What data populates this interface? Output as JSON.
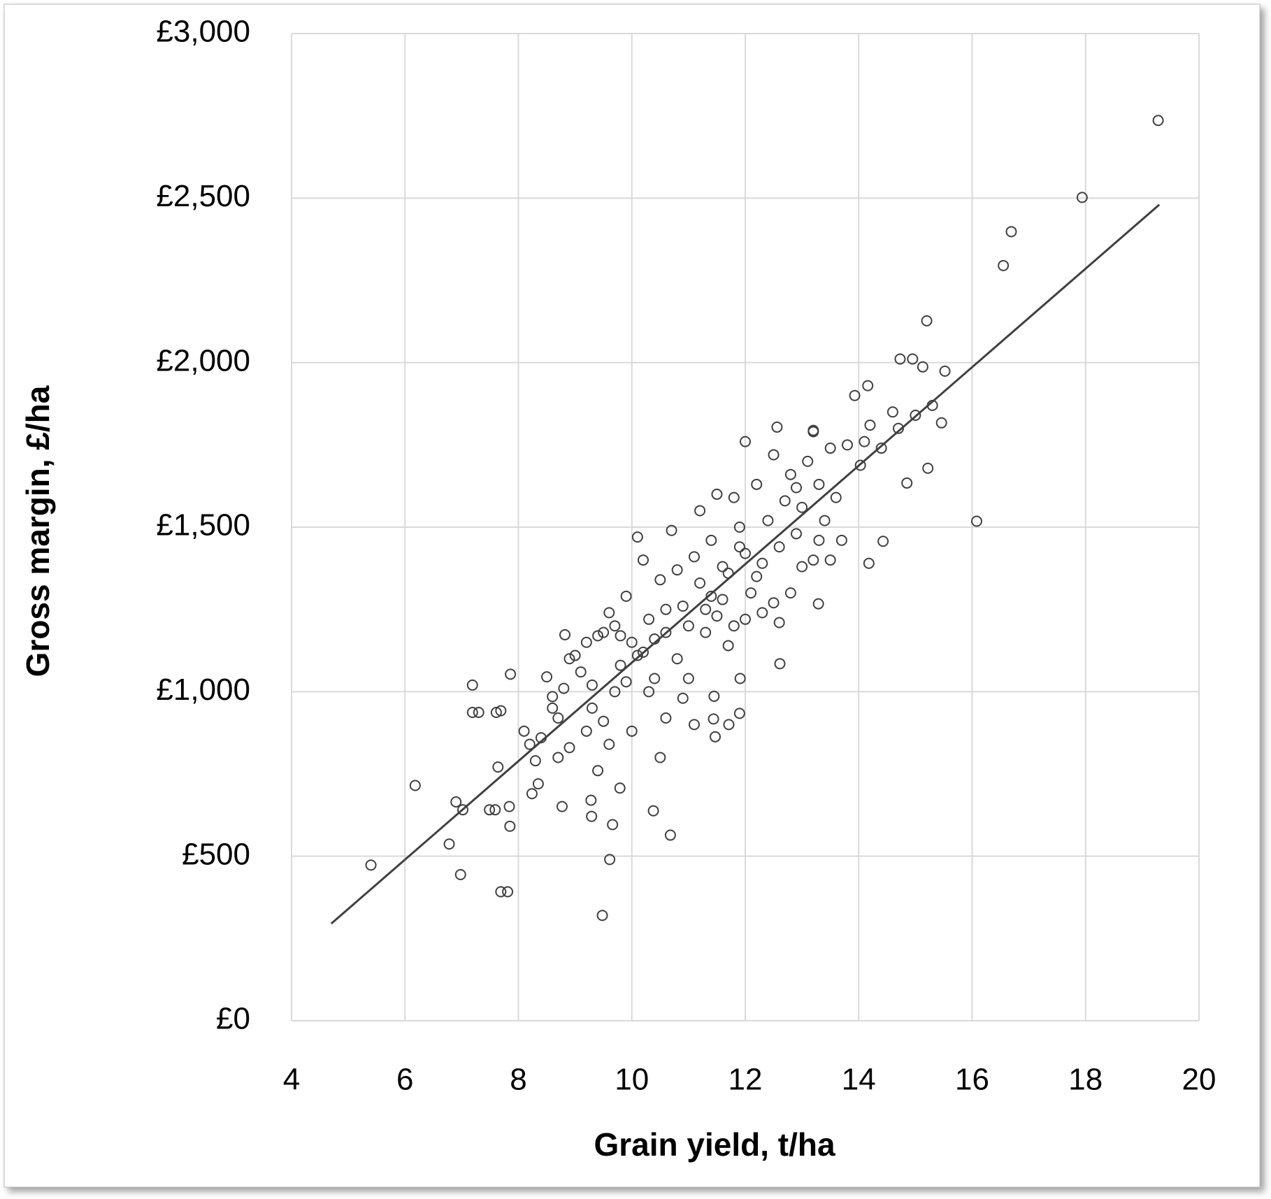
{
  "chart_data": {
    "type": "scatter",
    "x_label": "Grain yield, t/ha",
    "y_label": "Gross margin, £/ha",
    "xlim": [
      4,
      20
    ],
    "xticks": [
      4,
      6,
      8,
      10,
      12,
      14,
      16,
      18,
      20
    ],
    "ylim": [
      0,
      3000
    ],
    "yticks": [
      {
        "value": 0,
        "label": "£0"
      },
      {
        "value": 500,
        "label": "£500"
      },
      {
        "value": 1000,
        "label": "£1,000"
      },
      {
        "value": 1500,
        "label": "£1,500"
      },
      {
        "value": 2000,
        "label": "£2,000"
      },
      {
        "value": 2500,
        "label": "£2,500"
      },
      {
        "value": 3000,
        "label": "£3,000"
      }
    ],
    "grid": true,
    "series": [
      {
        "type": "scatter",
        "color": "#404040",
        "x": [
          19.28,
          17.94,
          16.69,
          16.55,
          15.2,
          16.08,
          15.46,
          15.52,
          15.13,
          14.95,
          14.73,
          14.16,
          13.93,
          14.03,
          14.18,
          14.43,
          15.22,
          14.85,
          5.4,
          6.18,
          6.78,
          6.98,
          6.9,
          7.02,
          7.19,
          7.19,
          7.3,
          7.61,
          7.69,
          7.86,
          7.69,
          7.81,
          9.48,
          9.61,
          9.28,
          9.29,
          9.66,
          9.79,
          10.38,
          10.68,
          7.84,
          7.85,
          7.49,
          7.59,
          7.64,
          8.77,
          8.82,
          8.35,
          8.24,
          11.44,
          11.91,
          11.71,
          11.9,
          11.45,
          11.47,
          12.0,
          12.56,
          13.2,
          12.61,
          13.29,
          8.3,
          8.5,
          8.6,
          8.7,
          8.8,
          8.9,
          9.0,
          9.1,
          9.2,
          9.3,
          9.4,
          9.5,
          9.6,
          9.7,
          9.8,
          9.9,
          10.0,
          10.1,
          10.2,
          10.3,
          10.4,
          10.5,
          10.6,
          10.7,
          10.8,
          10.9,
          11.0,
          11.1,
          11.2,
          11.3,
          11.4,
          11.5,
          11.6,
          11.7,
          11.8,
          11.9,
          12.0,
          12.1,
          12.2,
          12.3,
          12.4,
          12.5,
          12.6,
          12.7,
          12.8,
          12.9,
          13.0,
          13.1,
          13.2,
          13.3,
          13.4,
          13.5,
          13.6,
          13.7,
          13.8,
          14.1,
          14.2,
          14.4,
          14.6,
          14.7,
          15.0,
          15.3,
          9.2,
          9.4,
          9.5,
          9.6,
          9.7,
          10.0,
          10.5,
          10.6,
          10.9,
          11.1,
          8.9,
          8.1,
          8.2,
          8.4,
          9.8,
          10.2,
          10.4,
          10.8,
          11.0,
          11.3,
          11.5,
          11.7,
          12.0,
          12.3,
          12.5,
          12.8,
          13.0,
          11.2,
          11.6,
          11.9,
          12.2,
          10.3,
          9.9,
          9.3,
          8.6,
          8.7,
          12.6,
          13.3,
          13.5,
          11.8,
          10.6,
          10.1,
          11.4,
          12.9,
          13.2
        ],
        "values": [
          2736,
          2502,
          2398,
          2295,
          2127,
          1518,
          1817,
          1974,
          1987,
          2011,
          2011,
          1930,
          1900,
          1688,
          1390,
          1457,
          1679,
          1634,
          473,
          715,
          537,
          444,
          665,
          641,
          1020,
          937,
          937,
          937,
          942,
          1053,
          392,
          392,
          320,
          490,
          670,
          621,
          596,
          707,
          638,
          564,
          651,
          591,
          641,
          641,
          771,
          651,
          1173,
          720,
          690,
          917,
          1040,
          900,
          934,
          986,
          863,
          1760,
          1804,
          1794,
          1085,
          1267,
          790,
          1045,
          985,
          920,
          1010,
          1100,
          1110,
          1060,
          1150,
          1020,
          1170,
          1180,
          1240,
          1200,
          1080,
          1290,
          1150,
          1470,
          1400,
          1220,
          1160,
          1340,
          1180,
          1490,
          1370,
          1260,
          1200,
          1410,
          1550,
          1250,
          1460,
          1600,
          1280,
          1360,
          1590,
          1500,
          1420,
          1300,
          1630,
          1390,
          1520,
          1720,
          1210,
          1580,
          1660,
          1480,
          1560,
          1700,
          1400,
          1630,
          1520,
          1740,
          1590,
          1460,
          1750,
          1760,
          1810,
          1740,
          1850,
          1800,
          1840,
          1870,
          880,
          760,
          910,
          840,
          1000,
          880,
          800,
          920,
          980,
          900,
          830,
          880,
          840,
          860,
          1170,
          1120,
          1040,
          1100,
          1040,
          1180,
          1230,
          1140,
          1220,
          1240,
          1270,
          1300,
          1380,
          1330,
          1380,
          1440,
          1350,
          1000,
          1030,
          950,
          950,
          800,
          1440,
          1460,
          1400,
          1200,
          1250,
          1110,
          1290,
          1620,
          1790
        ]
      },
      {
        "type": "line",
        "color": "#404040",
        "x": [
          4.7,
          19.3
        ],
        "values": [
          295,
          2480
        ]
      }
    ]
  }
}
